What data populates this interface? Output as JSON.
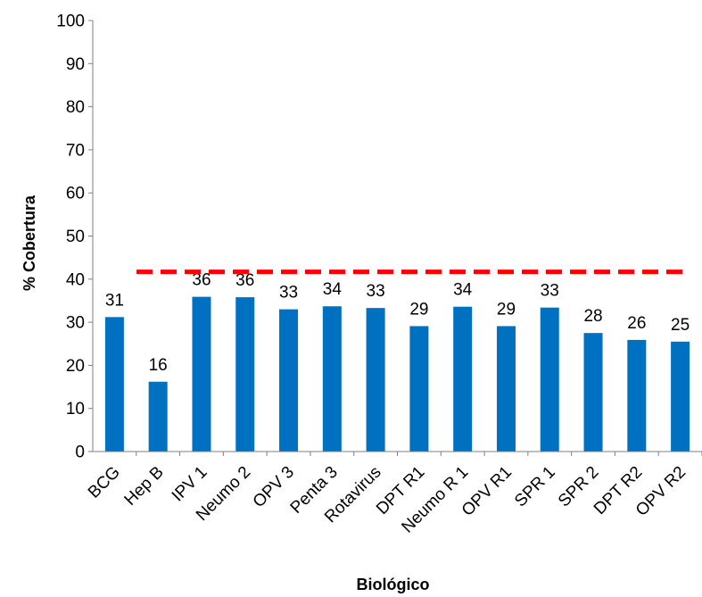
{
  "chart_data": {
    "type": "bar",
    "categories": [
      "BCG",
      "Hep B",
      "IPV 1",
      "Neumo 2",
      "OPV 3",
      "Penta 3",
      "Rotavirus",
      "DPT R1",
      "Neumo R 1",
      "OPV R1",
      "SPR 1",
      "SPR 2",
      "DPT R2",
      "OPV R2"
    ],
    "values": [
      31.2,
      16.2,
      35.9,
      35.8,
      33.0,
      33.7,
      33.3,
      29.1,
      33.6,
      29.1,
      33.4,
      27.5,
      25.9,
      25.5
    ],
    "data_labels": [
      "31",
      "16",
      "36",
      "36",
      "33",
      "34",
      "33",
      "29",
      "34",
      "29",
      "33",
      "28",
      "26",
      "25"
    ],
    "title": "",
    "xlabel": "Biológico",
    "ylabel": "% Cobertura",
    "ylim": [
      0,
      100
    ],
    "yticks": [
      0,
      10,
      20,
      30,
      40,
      50,
      60,
      70,
      80,
      90,
      100
    ],
    "target_line": {
      "value": 41.7,
      "style": "dashed"
    },
    "grid": false,
    "legend": "none",
    "colors": {
      "bar": "#0070C0",
      "target_line": "#FF0000",
      "axis": "#808080"
    }
  }
}
